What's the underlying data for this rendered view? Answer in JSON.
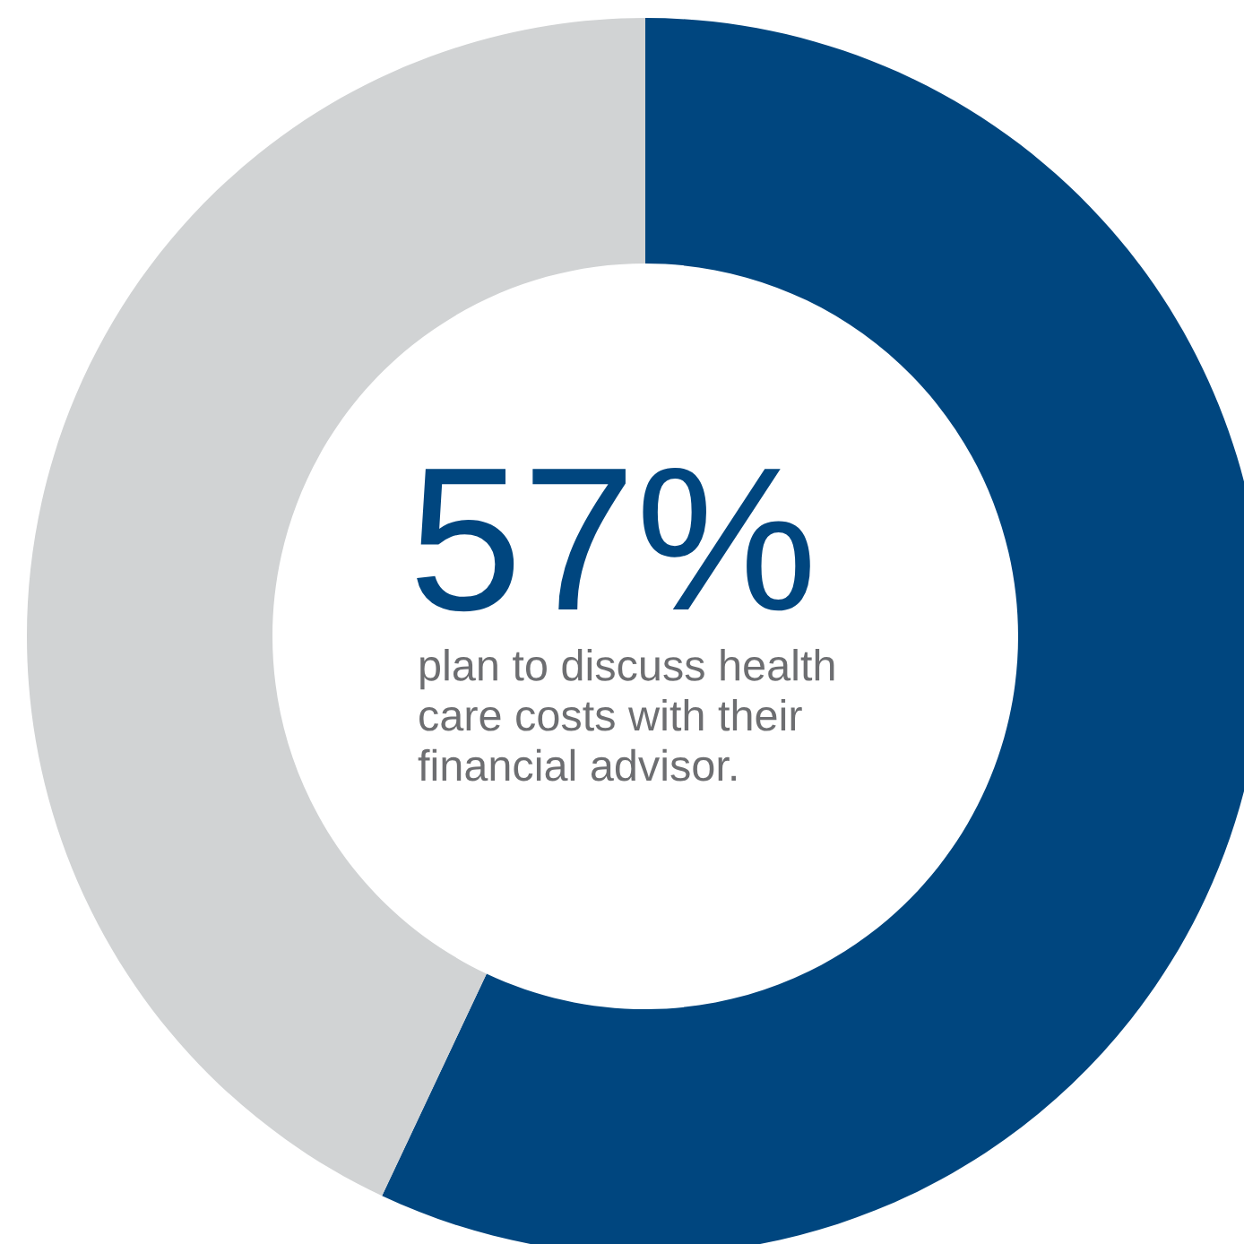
{
  "chart_data": {
    "type": "donut",
    "categories": [
      null,
      null
    ],
    "values": [
      57,
      43
    ],
    "colors": [
      "#00467f",
      "#d1d3d4"
    ],
    "annotations": [
      "57%",
      "plan to discuss health\ncare costs with their\nfinancial advisor."
    ]
  }
}
